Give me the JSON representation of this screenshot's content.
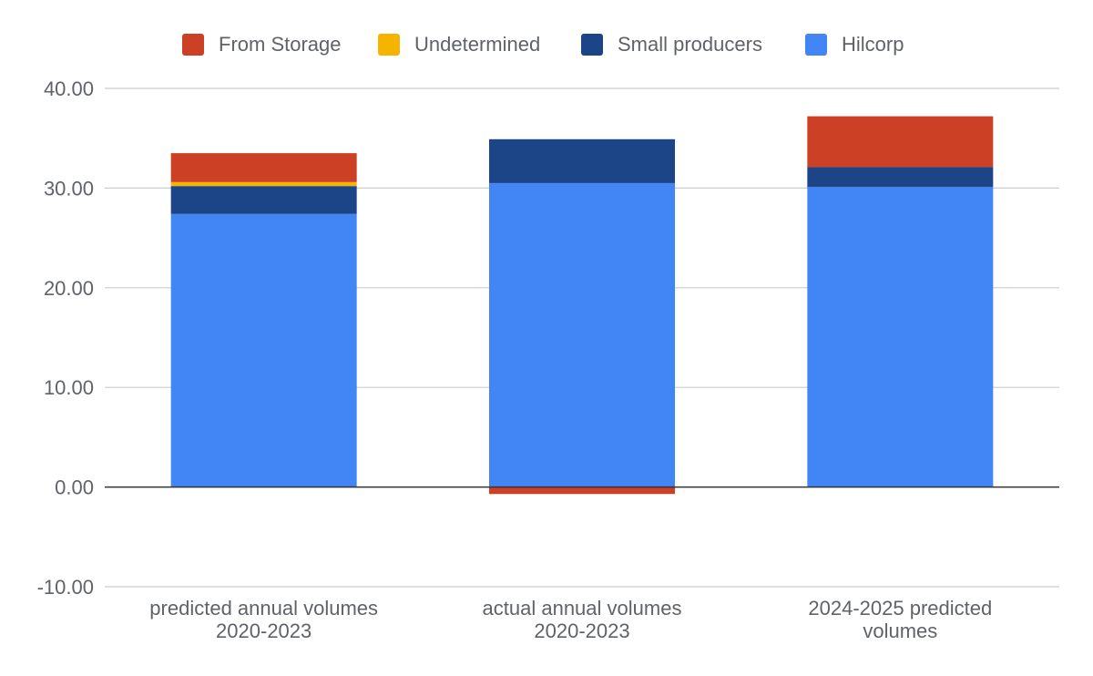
{
  "chart_data": {
    "type": "bar",
    "stacked": true,
    "categories": [
      [
        "predicted annual volumes",
        "2020-2023"
      ],
      [
        "actual annual volumes",
        "2020-2023"
      ],
      [
        "2024-2025 predicted",
        "volumes"
      ]
    ],
    "series": [
      {
        "name": "Hilcorp",
        "color": "#4285f4",
        "values": [
          27.4,
          30.5,
          30.1
        ]
      },
      {
        "name": "Small producers",
        "color": "#1c4587",
        "values": [
          2.8,
          4.4,
          2.0
        ]
      },
      {
        "name": "Undetermined",
        "color": "#f4b400",
        "values": [
          0.4,
          0,
          0
        ]
      },
      {
        "name": "From Storage",
        "color": "#cc4125",
        "values": [
          2.9,
          -0.7,
          5.1
        ]
      }
    ],
    "legend_order": [
      "From Storage",
      "Undetermined",
      "Small producers",
      "Hilcorp"
    ],
    "legend_position": "top",
    "yticks": [
      "40.00",
      "30.00",
      "20.00",
      "10.00",
      "0.00",
      "-10.00"
    ],
    "ylim": [
      -10,
      40
    ],
    "grid": true
  }
}
